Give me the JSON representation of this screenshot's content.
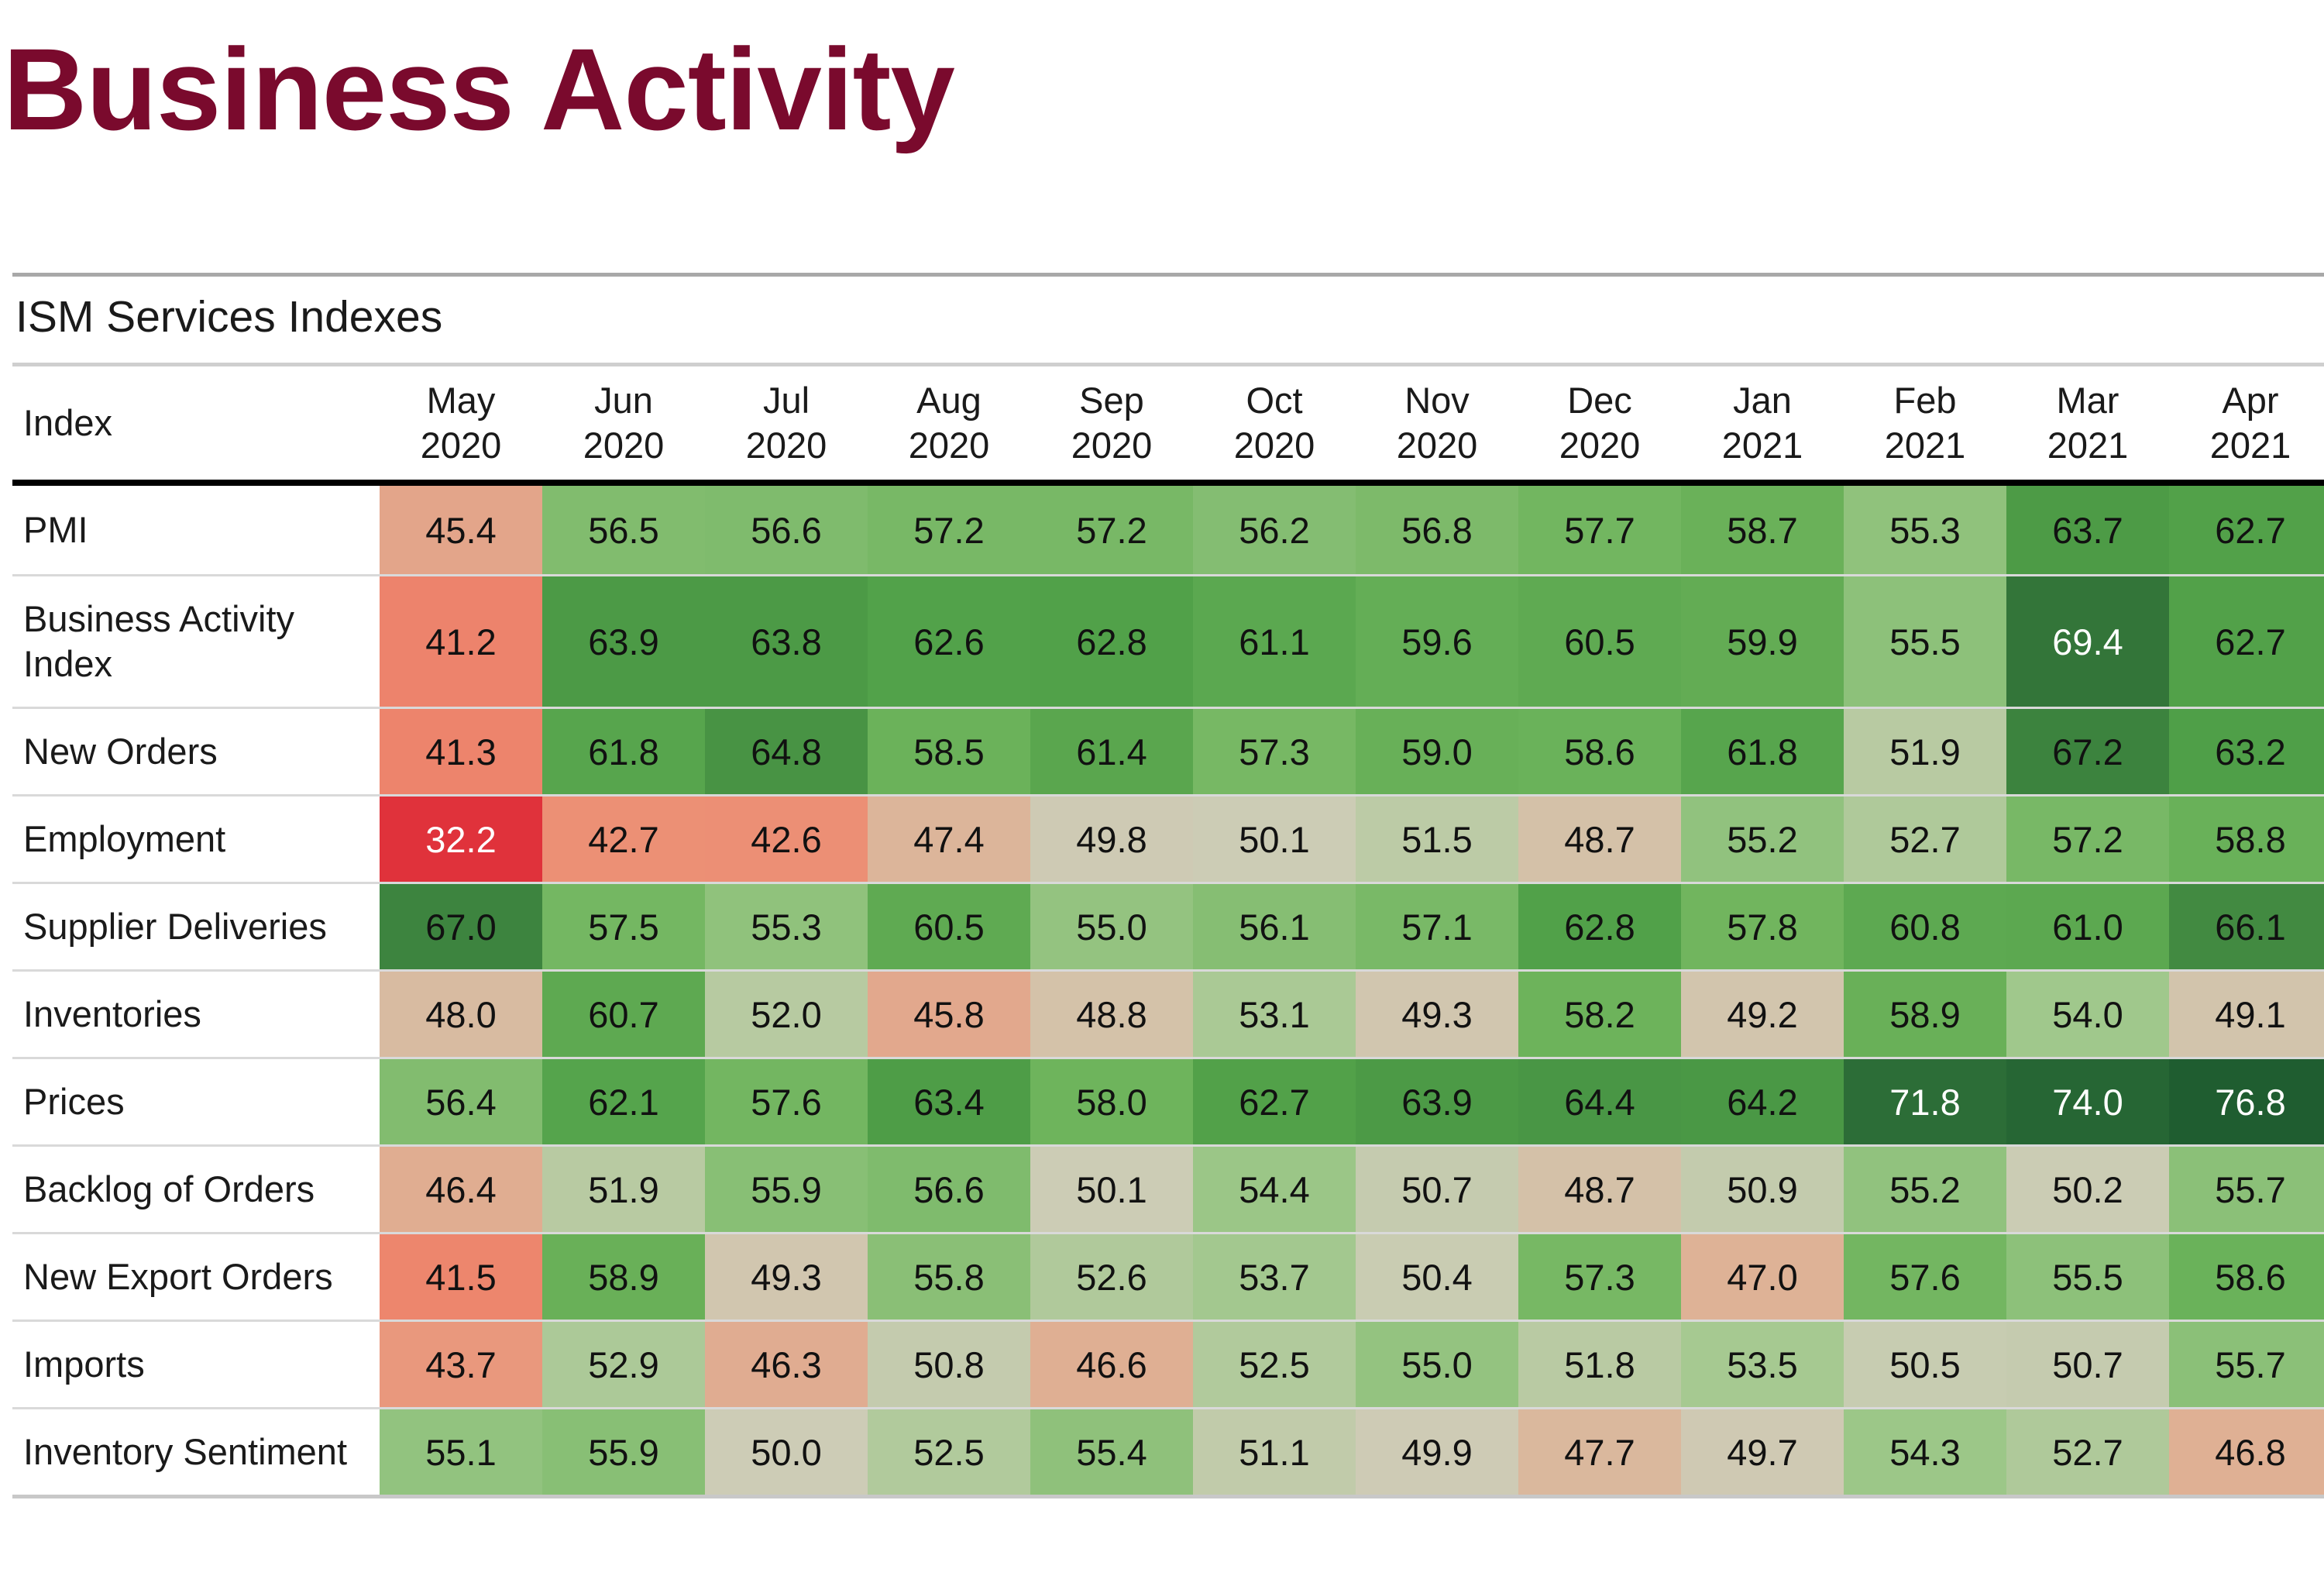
{
  "page_title": "Business Activity",
  "table": {
    "title": "ISM Services Indexes",
    "index_header": "Index",
    "months": [
      [
        "May",
        "2020"
      ],
      [
        "Jun",
        "2020"
      ],
      [
        "Jul",
        "2020"
      ],
      [
        "Aug",
        "2020"
      ],
      [
        "Sep",
        "2020"
      ],
      [
        "Oct",
        "2020"
      ],
      [
        "Nov",
        "2020"
      ],
      [
        "Dec",
        "2020"
      ],
      [
        "Jan",
        "2021"
      ],
      [
        "Feb",
        "2021"
      ],
      [
        "Mar",
        "2021"
      ],
      [
        "Apr",
        "2021"
      ]
    ],
    "colors": {
      "title": "#7a0a2d",
      "low": "#e0303a",
      "mid": "#cfc9b4",
      "high": "#1f5e2f"
    }
  },
  "chart_data": {
    "type": "heatmap",
    "title": "ISM Services Indexes",
    "columns": [
      "May 2020",
      "Jun 2020",
      "Jul 2020",
      "Aug 2020",
      "Sep 2020",
      "Oct 2020",
      "Nov 2020",
      "Dec 2020",
      "Jan 2021",
      "Feb 2021",
      "Mar 2021",
      "Apr 2021"
    ],
    "rows": [
      {
        "label": "PMI",
        "values": [
          45.4,
          56.5,
          56.6,
          57.2,
          57.2,
          56.2,
          56.8,
          57.7,
          58.7,
          55.3,
          63.7,
          62.7
        ]
      },
      {
        "label": "Business Activity Index",
        "values": [
          41.2,
          63.9,
          63.8,
          62.6,
          62.8,
          61.1,
          59.6,
          60.5,
          59.9,
          55.5,
          69.4,
          62.7
        ]
      },
      {
        "label": "New Orders",
        "values": [
          41.3,
          61.8,
          64.8,
          58.5,
          61.4,
          57.3,
          59.0,
          58.6,
          61.8,
          51.9,
          67.2,
          63.2
        ]
      },
      {
        "label": "Employment",
        "values": [
          32.2,
          42.7,
          42.6,
          47.4,
          49.8,
          50.1,
          51.5,
          48.7,
          55.2,
          52.7,
          57.2,
          58.8
        ]
      },
      {
        "label": "Supplier Deliveries",
        "values": [
          67.0,
          57.5,
          55.3,
          60.5,
          55.0,
          56.1,
          57.1,
          62.8,
          57.8,
          60.8,
          61.0,
          66.1
        ]
      },
      {
        "label": "Inventories",
        "values": [
          48.0,
          60.7,
          52.0,
          45.8,
          48.8,
          53.1,
          49.3,
          58.2,
          49.2,
          58.9,
          54.0,
          49.1
        ]
      },
      {
        "label": "Prices",
        "values": [
          56.4,
          62.1,
          57.6,
          63.4,
          58.0,
          62.7,
          63.9,
          64.4,
          64.2,
          71.8,
          74.0,
          76.8
        ]
      },
      {
        "label": "Backlog of Orders",
        "values": [
          46.4,
          51.9,
          55.9,
          56.6,
          50.1,
          54.4,
          50.7,
          48.7,
          50.9,
          55.2,
          50.2,
          55.7
        ]
      },
      {
        "label": "New Export Orders",
        "values": [
          41.5,
          58.9,
          49.3,
          55.8,
          52.6,
          53.7,
          50.4,
          57.3,
          47.0,
          57.6,
          55.5,
          58.6
        ]
      },
      {
        "label": "Imports",
        "values": [
          43.7,
          52.9,
          46.3,
          50.8,
          46.6,
          52.5,
          55.0,
          51.8,
          53.5,
          50.5,
          50.7,
          55.7
        ]
      },
      {
        "label": "Inventory Sentiment",
        "values": [
          55.1,
          55.9,
          50.0,
          52.5,
          55.4,
          51.1,
          49.9,
          47.7,
          49.7,
          54.3,
          52.7,
          46.8
        ]
      }
    ]
  }
}
